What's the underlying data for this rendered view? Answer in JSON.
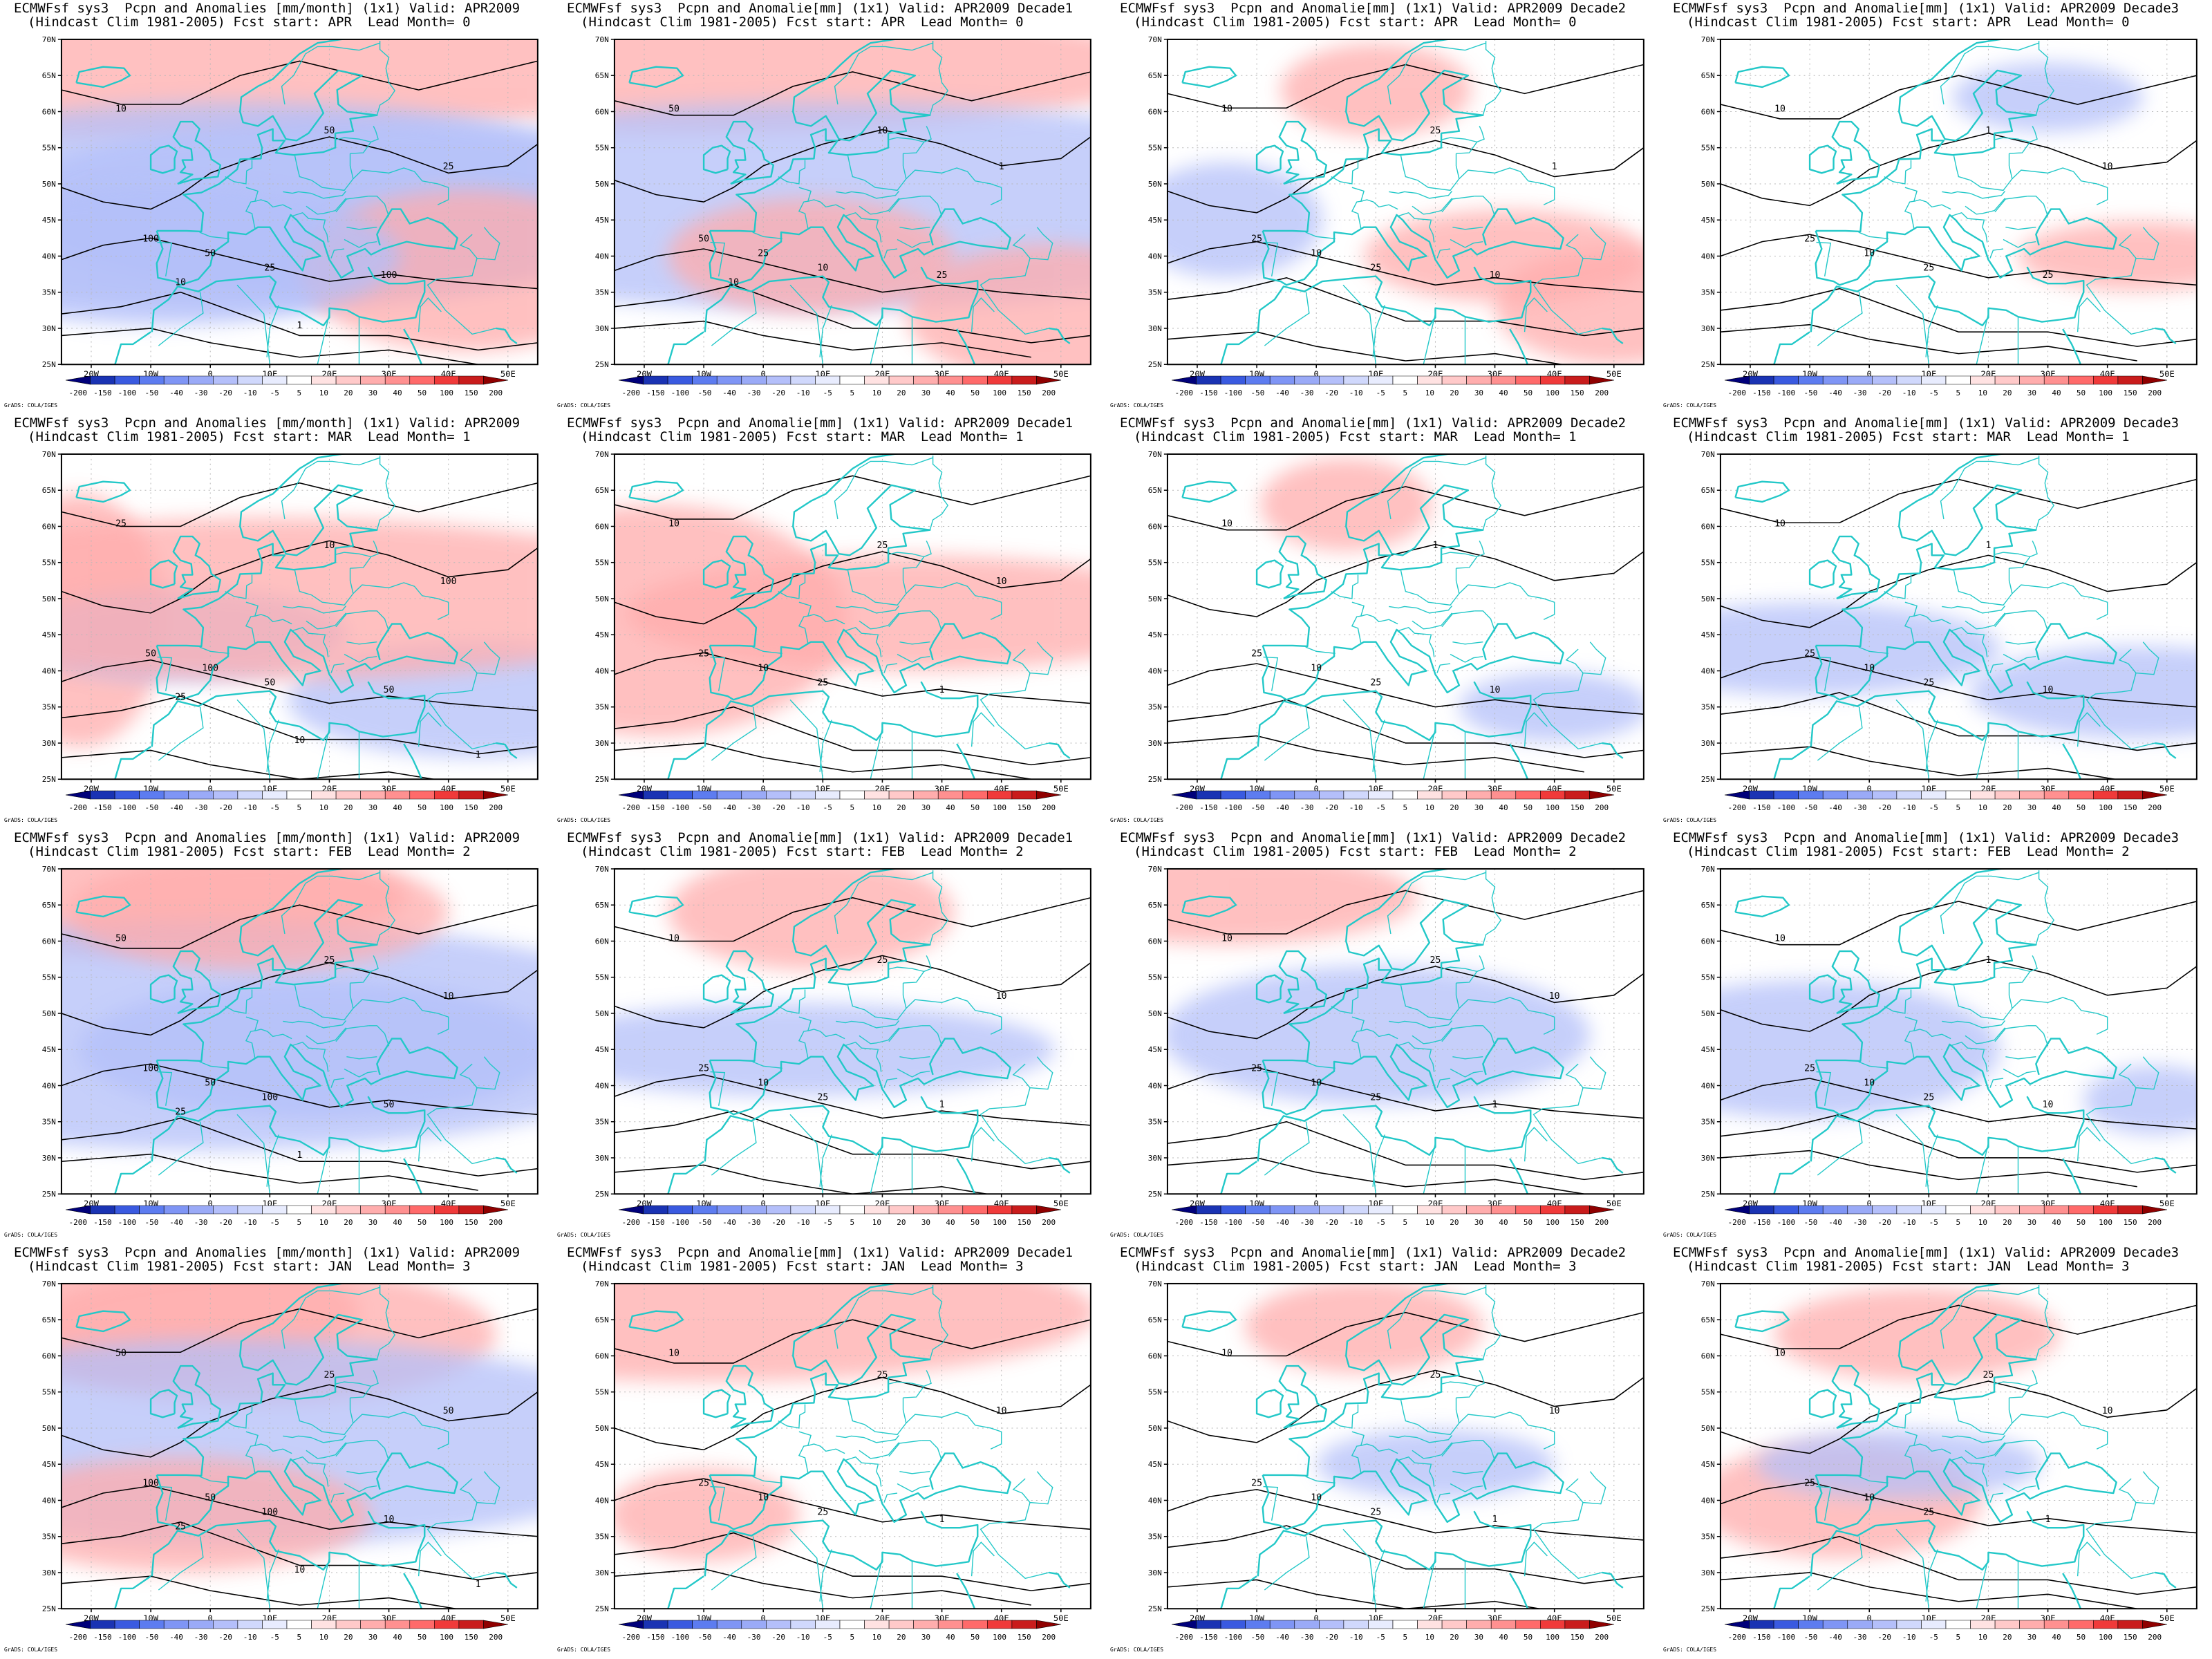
{
  "credit": "GrADS: COLA/IGES",
  "colorbar": {
    "levels": [
      "-200",
      "-150",
      "-100",
      "-50",
      "-40",
      "-30",
      "-20",
      "-10",
      "-5",
      "5",
      "10",
      "20",
      "30",
      "40",
      "50",
      "100",
      "150",
      "200"
    ],
    "colors": [
      "#00007a",
      "#1a33b3",
      "#3a5ae0",
      "#5d7cf0",
      "#7f95f5",
      "#9aaaf7",
      "#b4bffa",
      "#d0d8fc",
      "#e8ecfe",
      "#ffffff",
      "#ffe2e2",
      "#ffc9c9",
      "#ffadad",
      "#ff9090",
      "#ff6a6a",
      "#f03a3a",
      "#c91c1c",
      "#8f0000"
    ]
  },
  "map": {
    "lon_labels": [
      "20W",
      "10W",
      "0",
      "10E",
      "20E",
      "30E",
      "40E",
      "50E"
    ],
    "lat_labels": [
      "70N",
      "65N",
      "60N",
      "55N",
      "50N",
      "45N",
      "40N",
      "35N",
      "30N",
      "25N"
    ],
    "coast_color": "#23c8c8",
    "contour_color": "#000000"
  },
  "panels": [
    {
      "line1": "ECMWFsf sys3  Pcpn and Anomalies [mm/month] (1x1) Valid: APR2009",
      "line2": "(Hindcast Clim 1981-2005) Fcst start: APR  Lead Month= 0",
      "contour_labels": [
        "100",
        "50",
        "25",
        "10",
        "50",
        "100",
        "25",
        "10",
        "1"
      ],
      "anomalies": [
        {
          "lon": -12,
          "lat": 66,
          "rx": 120,
          "ry": 12,
          "v": "pos"
        },
        {
          "lon": 5,
          "lat": 47,
          "rx": 90,
          "ry": 18,
          "v": "neg"
        },
        {
          "lon": 22,
          "lat": 47,
          "rx": 70,
          "ry": 15,
          "v": "neg"
        },
        {
          "lon": 43,
          "lat": 38,
          "rx": 35,
          "ry": 14,
          "v": "pos"
        },
        {
          "lon": -8,
          "lat": 40,
          "rx": 50,
          "ry": 12,
          "v": "neg"
        }
      ]
    },
    {
      "line1": "ECMWFsf sys3  Pcpn and Anomalie[mm] (1x1) Valid: APR2009 Decade1",
      "line2": "(Hindcast Clim 1981-2005) Fcst start: APR  Lead Month= 0",
      "contour_labels": [
        "50",
        "25",
        "10",
        "50",
        "10",
        "25",
        "1",
        "10"
      ],
      "anomalies": [
        {
          "lon": -12,
          "lat": 66,
          "rx": 100,
          "ry": 11,
          "v": "pos"
        },
        {
          "lon": 10,
          "lat": 47,
          "rx": 110,
          "ry": 18,
          "v": "neg"
        },
        {
          "lon": 8,
          "lat": 40,
          "rx": 30,
          "ry": 10,
          "v": "pos"
        },
        {
          "lon": 48,
          "lat": 32,
          "rx": 30,
          "ry": 12,
          "v": "pos"
        }
      ]
    },
    {
      "line1": "ECMWFsf sys3  Pcpn and Anomalie[mm] (1x1) Valid: APR2009 Decade2",
      "line2": "(Hindcast Clim 1981-2005) Fcst start: APR  Lead Month= 0",
      "contour_labels": [
        "25",
        "10",
        "25",
        "10",
        "25",
        "10",
        "1"
      ],
      "anomalies": [
        {
          "lon": 10,
          "lat": 63,
          "rx": 20,
          "ry": 8,
          "v": "pos"
        },
        {
          "lon": -15,
          "lat": 45,
          "rx": 20,
          "ry": 10,
          "v": "neg"
        },
        {
          "lon": 50,
          "lat": 33,
          "rx": 25,
          "ry": 10,
          "v": "pos"
        },
        {
          "lon": 32,
          "lat": 40,
          "rx": 30,
          "ry": 8,
          "v": "pos"
        }
      ]
    },
    {
      "line1": "ECMWFsf sys3  Pcpn and Anomalie[mm] (1x1) Valid: APR2009 Decade3",
      "line2": "(Hindcast Clim 1981-2005) Fcst start: APR  Lead Month= 0",
      "contour_labels": [
        "25",
        "10",
        "25",
        "10",
        "1",
        "25",
        "10"
      ],
      "anomalies": [
        {
          "lon": 45,
          "lat": 40,
          "rx": 25,
          "ry": 6,
          "v": "pos"
        },
        {
          "lon": 30,
          "lat": 62,
          "rx": 20,
          "ry": 6,
          "v": "neg"
        }
      ]
    },
    {
      "line1": "ECMWFsf sys3  Pcpn and Anomalies [mm/month] (1x1) Valid: APR2009",
      "line2": "(Hindcast Clim 1981-2005) Fcst start: MAR  Lead Month= 1",
      "contour_labels": [
        "50",
        "100",
        "50",
        "25",
        "10",
        "50",
        "100",
        "25",
        "10",
        "1"
      ],
      "anomalies": [
        {
          "lon": -22,
          "lat": 47,
          "rx": 18,
          "ry": 22,
          "v": "pos"
        },
        {
          "lon": 45,
          "lat": 36,
          "rx": 40,
          "ry": 10,
          "v": "neg"
        },
        {
          "lon": -5,
          "lat": 45,
          "rx": 35,
          "ry": 8,
          "v": "neg"
        },
        {
          "lon": 10,
          "lat": 50,
          "rx": 90,
          "ry": 14,
          "v": "pos"
        }
      ]
    },
    {
      "line1": "ECMWFsf sys3  Pcpn and Anomalie[mm] (1x1) Valid: APR2009 Decade1",
      "line2": "(Hindcast Clim 1981-2005) Fcst start: MAR  Lead Month= 1",
      "contour_labels": [
        "25",
        "10",
        "25",
        "10",
        "25",
        "1",
        "10"
      ],
      "anomalies": [
        {
          "lon": -18,
          "lat": 47,
          "rx": 40,
          "ry": 20,
          "v": "pos"
        },
        {
          "lon": 25,
          "lat": 48,
          "rx": 60,
          "ry": 10,
          "v": "pos"
        }
      ]
    },
    {
      "line1": "ECMWFsf sys3  Pcpn and Anomalie[mm] (1x1) Valid: APR2009 Decade2",
      "line2": "(Hindcast Clim 1981-2005) Fcst start: MAR  Lead Month= 1",
      "contour_labels": [
        "25",
        "10",
        "25",
        "10",
        "1",
        "10"
      ],
      "anomalies": [
        {
          "lon": 5,
          "lat": 63,
          "rx": 18,
          "ry": 8,
          "v": "pos"
        },
        {
          "lon": 40,
          "lat": 35,
          "rx": 20,
          "ry": 6,
          "v": "neg"
        }
      ]
    },
    {
      "line1": "ECMWFsf sys3  Pcpn and Anomalie[mm] (1x1) Valid: APR2009 Decade3",
      "line2": "(Hindcast Clim 1981-2005) Fcst start: MAR  Lead Month= 1",
      "contour_labels": [
        "25",
        "10",
        "25",
        "10",
        "1",
        "10"
      ],
      "anomalies": [
        {
          "lon": 45,
          "lat": 37,
          "rx": 35,
          "ry": 8,
          "v": "neg"
        },
        {
          "lon": -10,
          "lat": 43,
          "rx": 40,
          "ry": 8,
          "v": "neg"
        }
      ]
    },
    {
      "line1": "ECMWFsf sys3  Pcpn and Anomalies [mm/month] (1x1) Valid: APR2009",
      "line2": "(Hindcast Clim 1981-2005) Fcst start: FEB  Lead Month= 2",
      "contour_labels": [
        "100",
        "50",
        "100",
        "50",
        "25",
        "50",
        "10",
        "25",
        "1"
      ],
      "anomalies": [
        {
          "lon": -15,
          "lat": 66,
          "rx": 60,
          "ry": 10,
          "v": "pos"
        },
        {
          "lon": 0,
          "lat": 47,
          "rx": 100,
          "ry": 20,
          "v": "neg"
        },
        {
          "lon": 18,
          "lat": 45,
          "rx": 50,
          "ry": 12,
          "v": "neg"
        },
        {
          "lon": 8,
          "lat": 64,
          "rx": 40,
          "ry": 10,
          "v": "pos"
        }
      ]
    },
    {
      "line1": "ECMWFsf sys3  Pcpn and Anomalie[mm] (1x1) Valid: APR2009 Decade1",
      "line2": "(Hindcast Clim 1981-2005) Fcst start: FEB  Lead Month= 2",
      "contour_labels": [
        "25",
        "10",
        "25",
        "10",
        "25",
        "1",
        "10"
      ],
      "anomalies": [
        {
          "lon": 8,
          "lat": 64,
          "rx": 30,
          "ry": 10,
          "v": "pos"
        },
        {
          "lon": 5,
          "lat": 45,
          "rx": 55,
          "ry": 8,
          "v": "neg"
        }
      ]
    },
    {
      "line1": "ECMWFsf sys3  Pcpn and Anomalie[mm] (1x1) Valid: APR2009 Decade2",
      "line2": "(Hindcast Clim 1981-2005) Fcst start: FEB  Lead Month= 2",
      "contour_labels": [
        "25",
        "10",
        "25",
        "10",
        "25",
        "1",
        "10"
      ],
      "anomalies": [
        {
          "lon": 10,
          "lat": 47,
          "rx": 45,
          "ry": 12,
          "v": "neg"
        },
        {
          "lon": -15,
          "lat": 66,
          "rx": 40,
          "ry": 8,
          "v": "pos"
        }
      ]
    },
    {
      "line1": "ECMWFsf sys3  Pcpn and Anomalie[mm] (1x1) Valid: APR2009 Decade3",
      "line2": "(Hindcast Clim 1981-2005) Fcst start: FEB  Lead Month= 2",
      "contour_labels": [
        "25",
        "10",
        "25",
        "10",
        "1",
        "10"
      ],
      "anomalies": [
        {
          "lon": -10,
          "lat": 45,
          "rx": 40,
          "ry": 12,
          "v": "neg"
        },
        {
          "lon": 48,
          "lat": 38,
          "rx": 15,
          "ry": 6,
          "v": "neg"
        }
      ]
    },
    {
      "line1": "ECMWFsf sys3  Pcpn and Anomalies [mm/month] (1x1) Valid: APR2009",
      "line2": "(Hindcast Clim 1981-2005) Fcst start: JAN  Lead Month= 3",
      "contour_labels": [
        "100",
        "50",
        "100",
        "50",
        "25",
        "10",
        "50",
        "25",
        "10",
        "1"
      ],
      "anomalies": [
        {
          "lon": -15,
          "lat": 66,
          "rx": 50,
          "ry": 12,
          "v": "pos"
        },
        {
          "lon": 8,
          "lat": 63,
          "rx": 50,
          "ry": 12,
          "v": "pos"
        },
        {
          "lon": 5,
          "lat": 48,
          "rx": 90,
          "ry": 18,
          "v": "neg"
        },
        {
          "lon": -5,
          "lat": 38,
          "rx": 40,
          "ry": 10,
          "v": "pos"
        }
      ]
    },
    {
      "line1": "ECMWFsf sys3  Pcpn and Anomalie[mm] (1x1) Valid: APR2009 Decade1",
      "line2": "(Hindcast Clim 1981-2005) Fcst start: JAN  Lead Month= 3",
      "contour_labels": [
        "25",
        "10",
        "25",
        "10",
        "25",
        "1",
        "10"
      ],
      "anomalies": [
        {
          "lon": -8,
          "lat": 66,
          "rx": 80,
          "ry": 12,
          "v": "pos"
        },
        {
          "lon": -10,
          "lat": 38,
          "rx": 20,
          "ry": 8,
          "v": "pos"
        }
      ]
    },
    {
      "line1": "ECMWFsf sys3  Pcpn and Anomalie[mm] (1x1) Valid: APR2009 Decade2",
      "line2": "(Hindcast Clim 1981-2005) Fcst start: JAN  Lead Month= 3",
      "contour_labels": [
        "25",
        "10",
        "25",
        "10",
        "25",
        "1",
        "10"
      ],
      "anomalies": [
        {
          "lon": 8,
          "lat": 64,
          "rx": 25,
          "ry": 8,
          "v": "pos"
        },
        {
          "lon": 20,
          "lat": 45,
          "rx": 25,
          "ry": 6,
          "v": "neg"
        }
      ]
    },
    {
      "line1": "ECMWFsf sys3  Pcpn and Anomalie[mm] (1x1) Valid: APR2009 Decade3",
      "line2": "(Hindcast Clim 1981-2005) Fcst start: JAN  Lead Month= 3",
      "contour_labels": [
        "25",
        "10",
        "25",
        "10",
        "25",
        "1",
        "10"
      ],
      "anomalies": [
        {
          "lon": 8,
          "lat": 63,
          "rx": 30,
          "ry": 8,
          "v": "pos"
        },
        {
          "lon": -5,
          "lat": 40,
          "rx": 30,
          "ry": 10,
          "v": "pos"
        },
        {
          "lon": 5,
          "lat": 45,
          "rx": 30,
          "ry": 6,
          "v": "neg"
        }
      ]
    }
  ]
}
